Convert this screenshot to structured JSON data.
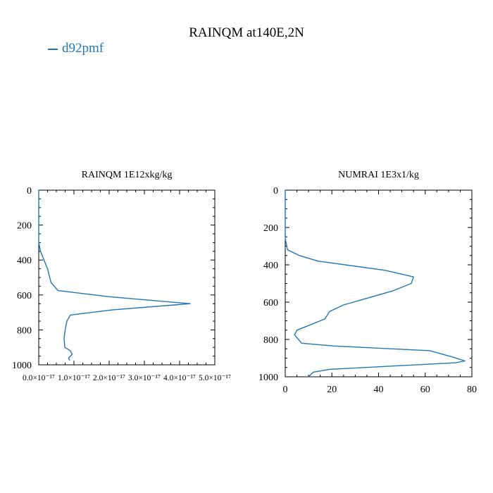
{
  "figure": {
    "title": "RAINQM at140E,2N",
    "legend": {
      "label": "d92pmf",
      "color": "#1f77b4"
    }
  },
  "chart_data": [
    {
      "type": "line",
      "title": "RAINQM  1E12xkg/kg",
      "xlabel": "",
      "ylabel": "",
      "xlim": [
        0,
        5e-17
      ],
      "ylim": [
        1000,
        0
      ],
      "x_ticks": [
        0,
        1e-17,
        2e-17,
        3e-17,
        4e-17,
        5e-17
      ],
      "x_tick_labels": [
        "0.0×10⁻¹⁷",
        "1.0×10⁻¹⁷",
        "2.0×10⁻¹⁷",
        "3.0×10⁻¹⁷",
        "4.0×10⁻¹⁷",
        "5.0×10⁻¹⁷"
      ],
      "y_ticks": [
        0,
        200,
        400,
        600,
        800,
        1000
      ],
      "y_tick_labels": [
        "0",
        "200",
        "400",
        "600",
        "800",
        "1000"
      ],
      "series": [
        {
          "name": "d92pmf",
          "color": "#1f77b4",
          "x": [
            0,
            0,
            5e-19,
            1.5e-18,
            2.5e-18,
            3.5e-18,
            5.5e-18,
            2e-17,
            4.3e-17,
            2.1e-17,
            9e-18,
            8e-18,
            7.5e-18,
            7.2e-18,
            7.4e-18,
            9e-18,
            9.5e-18,
            8.5e-18,
            8.8e-18
          ],
          "y": [
            0,
            300,
            350,
            400,
            450,
            530,
            575,
            610,
            650,
            685,
            715,
            750,
            800,
            850,
            900,
            920,
            940,
            960,
            975
          ]
        }
      ]
    },
    {
      "type": "line",
      "title": "NUMRAI  1E3x1/kg",
      "xlabel": "",
      "ylabel": "",
      "xlim": [
        0,
        80
      ],
      "ylim": [
        1000,
        0
      ],
      "x_ticks": [
        0,
        20,
        40,
        60,
        80
      ],
      "x_tick_labels": [
        "0",
        "20",
        "40",
        "60",
        "80"
      ],
      "y_ticks": [
        0,
        200,
        400,
        600,
        800,
        1000
      ],
      "y_tick_labels": [
        "0",
        "200",
        "400",
        "600",
        "800",
        "1000"
      ],
      "series": [
        {
          "name": "d92pmf",
          "color": "#1f77b4",
          "x": [
            0,
            0,
            1,
            6,
            14,
            43,
            55,
            54,
            46,
            25,
            19,
            17,
            5,
            4,
            7,
            21,
            62,
            72,
            77,
            73,
            19,
            12,
            10
          ],
          "y": [
            0,
            260,
            320,
            350,
            380,
            430,
            465,
            500,
            540,
            615,
            650,
            690,
            750,
            775,
            820,
            835,
            860,
            895,
            915,
            925,
            960,
            975,
            1000
          ]
        }
      ]
    }
  ]
}
